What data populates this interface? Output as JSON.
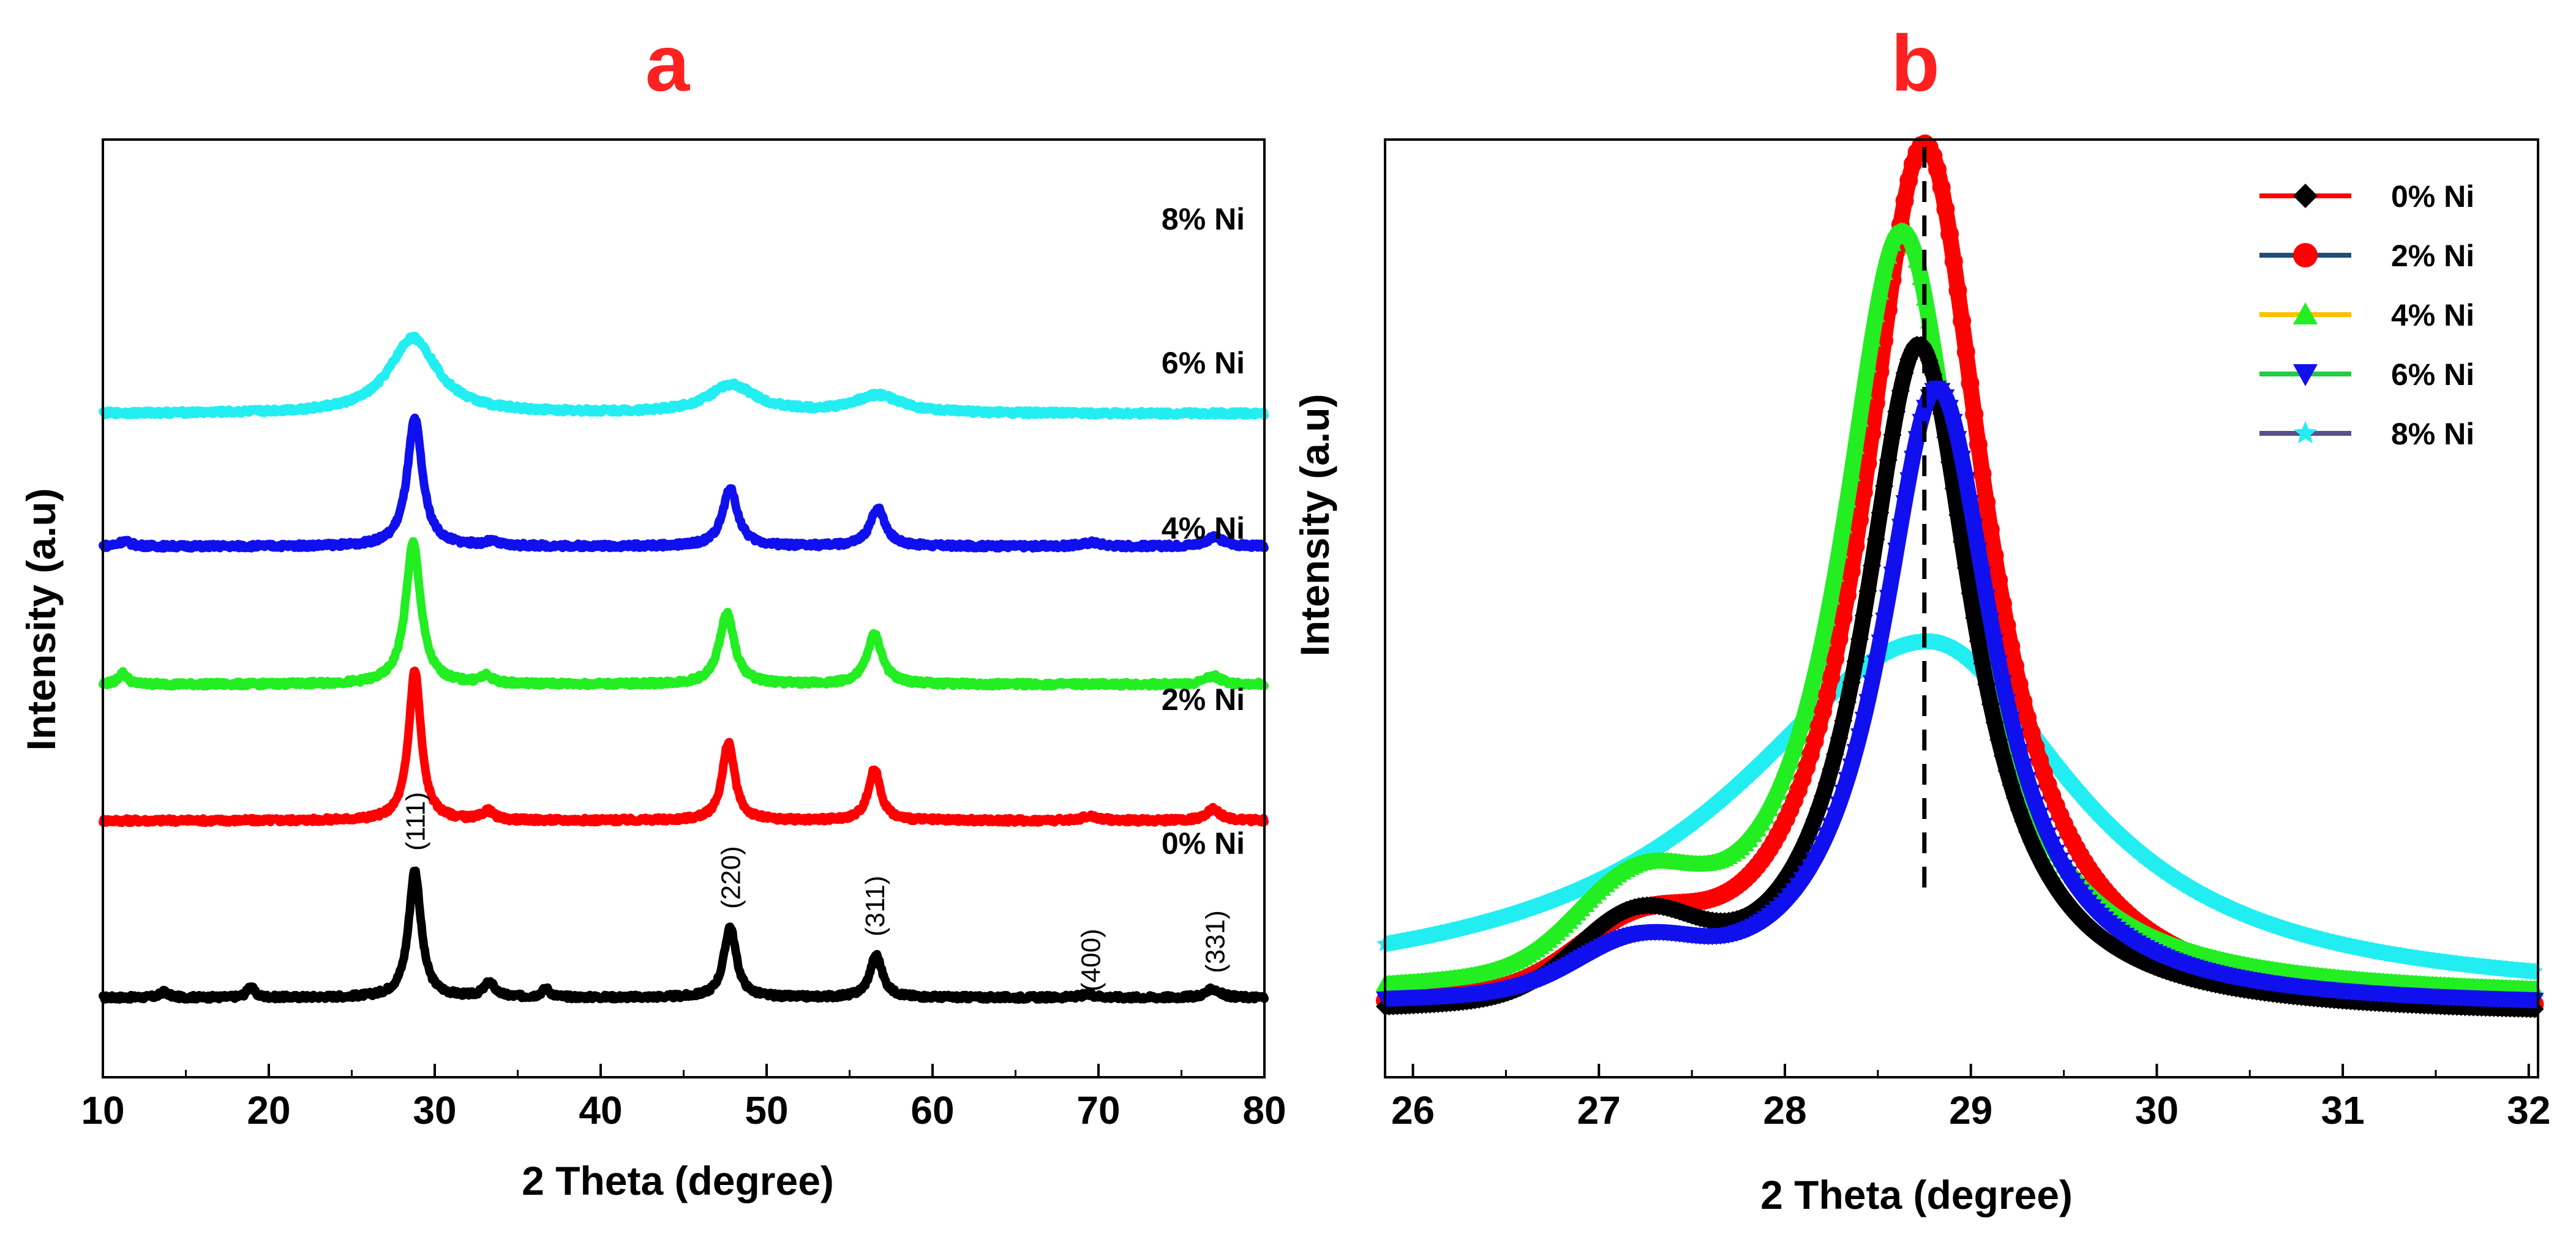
{
  "chart_data": [
    {
      "panel": "a",
      "type": "line",
      "title": "a",
      "title_color": "#ff2020",
      "xlabel": "2 Theta (degree)",
      "ylabel": "Intensity (a.u)",
      "xlim": [
        10,
        80
      ],
      "x_ticks": [
        10,
        20,
        30,
        40,
        50,
        60,
        70,
        80
      ],
      "ylim": [
        0,
        5.3
      ],
      "y_tick_labels": "none",
      "series": [
        {
          "name": "0% Ni",
          "label": "0% Ni",
          "color": "#000000",
          "offset": 0.45,
          "height": 0.8,
          "widthScale": 1.0,
          "peaks": [
            [
              28.8,
              0.9,
              0.45
            ],
            [
              47.8,
              0.5,
              0.45
            ],
            [
              56.6,
              0.3,
              0.45
            ],
            [
              69.4,
              0.02,
              0.6
            ],
            [
              76.9,
              0.06,
              0.5
            ],
            [
              33.3,
              0.1,
              0.4
            ],
            [
              36.7,
              0.06,
              0.3
            ],
            [
              18.9,
              0.08,
              0.25
            ],
            [
              13.7,
              0.04,
              0.3
            ]
          ]
        },
        {
          "name": "2% Ni",
          "label": "2% Ni",
          "color": "#ff0000",
          "offset": 1.45,
          "height": 0.85,
          "widthScale": 1.0,
          "peaks": [
            [
              28.8,
              1.0,
              0.45
            ],
            [
              47.7,
              0.52,
              0.45
            ],
            [
              56.5,
              0.34,
              0.45
            ],
            [
              33.2,
              0.06,
              0.4
            ],
            [
              69.5,
              0.03,
              0.6
            ],
            [
              76.9,
              0.08,
              0.5
            ]
          ]
        },
        {
          "name": "4% Ni",
          "label": "4% Ni",
          "color": "#22ee22",
          "offset": 2.22,
          "height": 0.8,
          "widthScale": 1.1,
          "peaks": [
            [
              28.7,
              1.0,
              0.5
            ],
            [
              47.6,
              0.5,
              0.5
            ],
            [
              56.5,
              0.35,
              0.5
            ],
            [
              11.2,
              0.08,
              0.3
            ],
            [
              33.1,
              0.05,
              0.4
            ],
            [
              76.9,
              0.06,
              0.5
            ]
          ]
        },
        {
          "name": "6% Ni",
          "label": "6% Ni",
          "color": "#1010ee",
          "offset": 3.0,
          "height": 0.72,
          "widthScale": 1.1,
          "peaks": [
            [
              28.8,
              1.0,
              0.5
            ],
            [
              47.8,
              0.45,
              0.5
            ],
            [
              56.7,
              0.3,
              0.5
            ],
            [
              11.3,
              0.04,
              0.4
            ],
            [
              33.4,
              0.03,
              0.4
            ],
            [
              69.6,
              0.03,
              0.6
            ],
            [
              77.0,
              0.07,
              0.6
            ]
          ]
        },
        {
          "name": "8% Ni",
          "label": "8% Ni",
          "color": "#22eef2",
          "offset": 3.75,
          "height": 0.45,
          "widthScale": 3.2,
          "peaks": [
            [
              28.7,
              0.95,
              0.55
            ],
            [
              47.9,
              0.35,
              0.55
            ],
            [
              56.7,
              0.22,
              0.55
            ]
          ]
        }
      ],
      "annotations": [
        {
          "text": "(111)",
          "x": 28.8
        },
        {
          "text": "(220)",
          "x": 47.8
        },
        {
          "text": "(311)",
          "x": 56.5
        },
        {
          "text": "(400)",
          "x": 69.5
        },
        {
          "text": "(331)",
          "x": 77.0
        }
      ]
    },
    {
      "panel": "b",
      "type": "line",
      "title": "b",
      "title_color": "#ff2020",
      "xlabel": "2 Theta (degree)",
      "ylabel": "Intensity (a.u)",
      "xlim": [
        25.85,
        32.05
      ],
      "x_ticks": [
        26,
        27,
        28,
        29,
        30,
        31,
        32
      ],
      "ylim": [
        0,
        1.0
      ],
      "y_tick_labels": "none",
      "reference_line_x": 28.75,
      "legend_position": "top-right",
      "series": [
        {
          "name": "0% Ni",
          "label": "0% Ni",
          "color": "#000000",
          "legend_line_color": "#ff0000",
          "marker": "diamond",
          "center": 28.72,
          "peak": 0.77,
          "width": 0.36,
          "base": 0.02,
          "shoulder": 0.085,
          "broad": 0
        },
        {
          "name": "2% Ni",
          "label": "2% Ni",
          "color": "#ff0000",
          "legend_line_color": "#1f4e79",
          "marker": "circle",
          "center": 28.75,
          "peak": 1.0,
          "width": 0.4,
          "base": 0.02,
          "shoulder": 0.06,
          "broad": 0
        },
        {
          "name": "4% Ni",
          "label": "4% Ni",
          "color": "#22ee22",
          "legend_line_color": "#ffc000",
          "marker": "triangle-up",
          "center": 28.63,
          "peak": 0.88,
          "width": 0.4,
          "base": 0.04,
          "shoulder": 0.09,
          "broad": 0
        },
        {
          "name": "6% Ni",
          "label": "6% Ni",
          "color": "#1010ee",
          "legend_line_color": "#22cc44",
          "marker": "triangle-down",
          "center": 28.82,
          "peak": 0.71,
          "width": 0.37,
          "base": 0.03,
          "shoulder": 0.05,
          "broad": 0
        },
        {
          "name": "8% Ni",
          "label": "8% Ni",
          "color": "#22eef2",
          "legend_line_color": "#5a4e8c",
          "marker": "star",
          "center": 28.77,
          "peak": 0.41,
          "width": 1.25,
          "base": 0.04,
          "shoulder": 0,
          "broad": 1
        }
      ]
    }
  ]
}
